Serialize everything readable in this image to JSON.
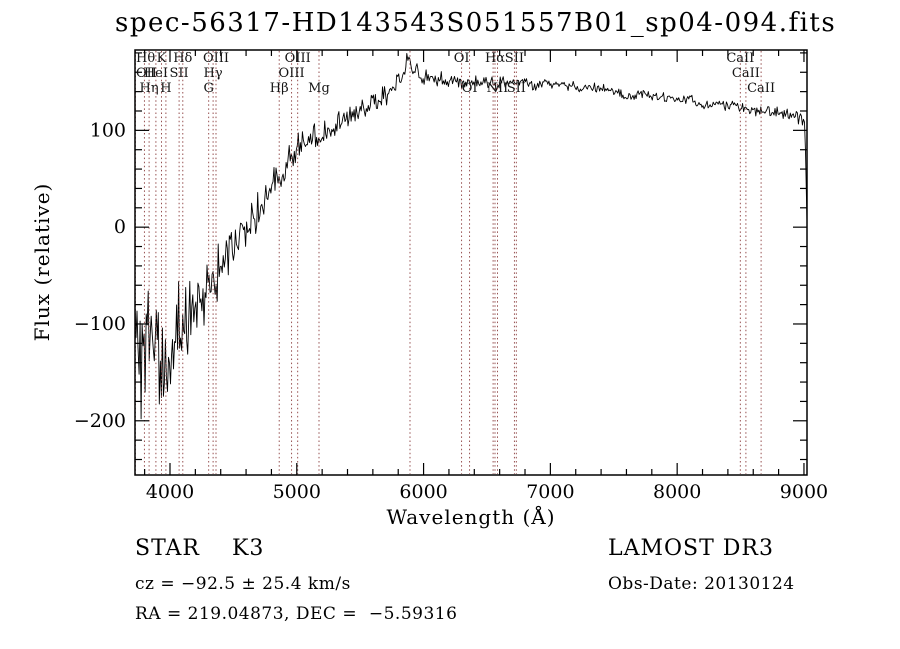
{
  "title": "spec-56317-HD143543S051557B01_sp04-094.fits",
  "chart_data": {
    "type": "line",
    "title": "spec-56317-HD143543S051557B01_sp04-094.fits",
    "xlabel": "Wavelength (Å)",
    "ylabel": "Flux (relative)",
    "x_range": [
      3724,
      9024
    ],
    "y_range": [
      -256,
      183
    ],
    "x_ticks": [
      4000,
      5000,
      6000,
      7000,
      8000,
      9000
    ],
    "y_ticks": [
      -200,
      -100,
      0,
      100
    ],
    "x_minor_step": 200,
    "y_minor_step": 20,
    "grid": false,
    "legend": "none",
    "colors": {
      "spectrum": "#000000",
      "line_marker": "#8b3e3e",
      "axis": "#000000"
    },
    "spectral_lines": [
      {
        "wavelength": 3727,
        "label": "OII",
        "row": 2
      },
      {
        "wavelength": 3798,
        "label": "Hθ",
        "row": 1
      },
      {
        "wavelength": 3835,
        "label": "Hη",
        "row": 3
      },
      {
        "wavelength": 3889,
        "label": "HeI",
        "row": 2
      },
      {
        "wavelength": 3933,
        "label": "K",
        "row": 1
      },
      {
        "wavelength": 3968,
        "label": "H",
        "row": 3
      },
      {
        "wavelength": 4072,
        "label": "SII",
        "row": 2
      },
      {
        "wavelength": 4101,
        "label": "Hδ",
        "row": 1
      },
      {
        "wavelength": 4305,
        "label": "G",
        "row": 3
      },
      {
        "wavelength": 4340,
        "label": "Hγ",
        "row": 2
      },
      {
        "wavelength": 4363,
        "label": "OIII",
        "row": 1
      },
      {
        "wavelength": 4861,
        "label": "Hβ",
        "row": 3
      },
      {
        "wavelength": 4959,
        "label": "OIII",
        "row": 2
      },
      {
        "wavelength": 5007,
        "label": "OIII",
        "row": 1
      },
      {
        "wavelength": 5175,
        "label": "Mg",
        "row": 3
      },
      {
        "wavelength": 5893,
        "label": "",
        "row": 0
      },
      {
        "wavelength": 6300,
        "label": "OI",
        "row": 1
      },
      {
        "wavelength": 6363,
        "label": "OI",
        "row": 3
      },
      {
        "wavelength": 6548,
        "label": "",
        "row": 0
      },
      {
        "wavelength": 6563,
        "label": "Hα",
        "row": 1
      },
      {
        "wavelength": 6583,
        "label": "NII",
        "row": 3
      },
      {
        "wavelength": 6716,
        "label": "SII",
        "row": 1
      },
      {
        "wavelength": 6731,
        "label": "SII",
        "row": 3
      },
      {
        "wavelength": 8498,
        "label": "CaII",
        "row": 1
      },
      {
        "wavelength": 8542,
        "label": "CaII",
        "row": 2
      },
      {
        "wavelength": 8662,
        "label": "CaII",
        "row": 3
      }
    ],
    "series": [
      {
        "name": "spectrum",
        "envelope": [
          [
            3724,
            -110
          ],
          [
            3736,
            -150
          ],
          [
            3748,
            -120
          ],
          [
            3760,
            -135
          ],
          [
            3772,
            -125
          ],
          [
            3786,
            -140
          ],
          [
            3798,
            -132
          ],
          [
            3812,
            -120
          ],
          [
            3826,
            -138
          ],
          [
            3840,
            -128
          ],
          [
            3854,
            -142
          ],
          [
            3868,
            -130
          ],
          [
            3882,
            -148
          ],
          [
            3896,
            -138
          ],
          [
            3910,
            -130
          ],
          [
            3933,
            -152
          ],
          [
            3950,
            -128
          ],
          [
            3968,
            -148
          ],
          [
            3984,
            -130
          ],
          [
            4000,
            -118
          ],
          [
            4030,
            -112
          ],
          [
            4060,
            -106
          ],
          [
            4090,
            -104
          ],
          [
            4101,
            -110
          ],
          [
            4120,
            -98
          ],
          [
            4150,
            -90
          ],
          [
            4190,
            -80
          ],
          [
            4230,
            -72
          ],
          [
            4270,
            -64
          ],
          [
            4305,
            -60
          ],
          [
            4340,
            -56
          ],
          [
            4370,
            -46
          ],
          [
            4410,
            -36
          ],
          [
            4450,
            -28
          ],
          [
            4500,
            -18
          ],
          [
            4550,
            -10
          ],
          [
            4600,
            -2
          ],
          [
            4650,
            8
          ],
          [
            4700,
            20
          ],
          [
            4750,
            30
          ],
          [
            4800,
            42
          ],
          [
            4861,
            50
          ],
          [
            4900,
            60
          ],
          [
            4930,
            66
          ],
          [
            4960,
            72
          ],
          [
            5000,
            80
          ],
          [
            5050,
            87
          ],
          [
            5100,
            92
          ],
          [
            5140,
            95
          ],
          [
            5175,
            92
          ],
          [
            5210,
            99
          ],
          [
            5260,
            103
          ],
          [
            5320,
            107
          ],
          [
            5380,
            110
          ],
          [
            5440,
            114
          ],
          [
            5500,
            119
          ],
          [
            5560,
            124
          ],
          [
            5620,
            130
          ],
          [
            5680,
            136
          ],
          [
            5740,
            143
          ],
          [
            5790,
            150
          ],
          [
            5830,
            158
          ],
          [
            5860,
            165
          ],
          [
            5885,
            172
          ],
          [
            5905,
            168
          ],
          [
            5930,
            161
          ],
          [
            5960,
            157
          ],
          [
            6000,
            156
          ],
          [
            6060,
            154
          ],
          [
            6120,
            153
          ],
          [
            6180,
            152
          ],
          [
            6240,
            152
          ],
          [
            6300,
            150
          ],
          [
            6360,
            151
          ],
          [
            6420,
            150
          ],
          [
            6480,
            149
          ],
          [
            6540,
            149
          ],
          [
            6563,
            146
          ],
          [
            6600,
            150
          ],
          [
            6660,
            150
          ],
          [
            6720,
            149
          ],
          [
            6780,
            150
          ],
          [
            6840,
            149
          ],
          [
            6875,
            143
          ],
          [
            6910,
            146
          ],
          [
            6960,
            149
          ],
          [
            7020,
            148
          ],
          [
            7080,
            147
          ],
          [
            7140,
            147
          ],
          [
            7200,
            146
          ],
          [
            7260,
            145
          ],
          [
            7320,
            144
          ],
          [
            7380,
            143
          ],
          [
            7440,
            142
          ],
          [
            7500,
            141
          ],
          [
            7560,
            139
          ],
          [
            7600,
            134
          ],
          [
            7650,
            137
          ],
          [
            7710,
            137
          ],
          [
            7770,
            136
          ],
          [
            7830,
            135
          ],
          [
            7890,
            134
          ],
          [
            7950,
            133
          ],
          [
            8010,
            132
          ],
          [
            8070,
            131
          ],
          [
            8130,
            130
          ],
          [
            8170,
            127
          ],
          [
            8210,
            126
          ],
          [
            8260,
            128
          ],
          [
            8320,
            128
          ],
          [
            8380,
            127
          ],
          [
            8440,
            126
          ],
          [
            8498,
            123
          ],
          [
            8542,
            121
          ],
          [
            8600,
            122
          ],
          [
            8662,
            119
          ],
          [
            8720,
            120
          ],
          [
            8780,
            119
          ],
          [
            8840,
            118
          ],
          [
            8900,
            116
          ],
          [
            8950,
            114
          ],
          [
            8990,
            112
          ],
          [
            9005,
            110
          ],
          [
            9015,
            62
          ],
          [
            9024,
            4
          ]
        ],
        "noise_profile": [
          [
            3724,
            62
          ],
          [
            3800,
            58
          ],
          [
            3900,
            54
          ],
          [
            3970,
            48
          ],
          [
            4000,
            42
          ],
          [
            4100,
            36
          ],
          [
            4200,
            30
          ],
          [
            4300,
            26
          ],
          [
            4400,
            22
          ],
          [
            4500,
            19
          ],
          [
            4600,
            17
          ],
          [
            4800,
            14
          ],
          [
            5000,
            12
          ],
          [
            5200,
            11
          ],
          [
            5400,
            9
          ],
          [
            5600,
            8
          ],
          [
            5800,
            9
          ],
          [
            5900,
            8
          ],
          [
            6000,
            6
          ],
          [
            6200,
            5
          ],
          [
            6400,
            4.5
          ],
          [
            6600,
            4.5
          ],
          [
            6800,
            4.5
          ],
          [
            7000,
            4
          ],
          [
            7400,
            4
          ],
          [
            7600,
            5
          ],
          [
            7800,
            4
          ],
          [
            8000,
            4.5
          ],
          [
            8200,
            5
          ],
          [
            8400,
            4.5
          ],
          [
            8600,
            4.5
          ],
          [
            8800,
            5
          ],
          [
            9000,
            5
          ],
          [
            9024,
            2
          ]
        ]
      }
    ]
  },
  "footer": {
    "class_label": "STAR    K3",
    "survey": "LAMOST DR3",
    "cz": "cz = −92.5 ± 25.4 km/s",
    "obs_date": "Obs-Date: 20130124",
    "coords": "RA = 219.04873, DEC =  −5.59316"
  }
}
